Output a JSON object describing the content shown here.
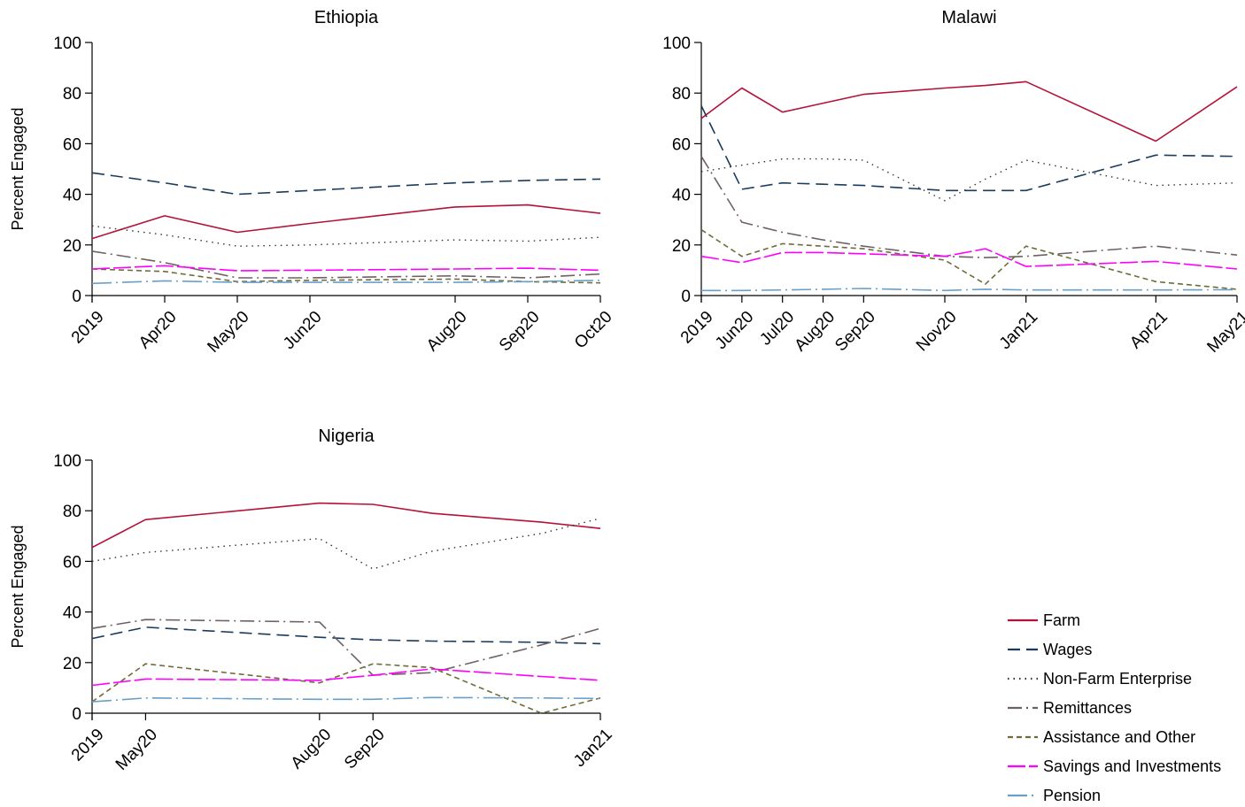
{
  "series_styles": [
    {
      "name": "Farm",
      "color": "#b5123a",
      "dash": "",
      "width": 1.6
    },
    {
      "name": "Wages",
      "color": "#1a3b5c",
      "dash": "14 7",
      "width": 1.6
    },
    {
      "name": "Non-Farm Enterprise",
      "color": "#333333",
      "dash": "1.5 5",
      "width": 1.4
    },
    {
      "name": "Remittances",
      "color": "#6e6166",
      "dash": "16 5 2 5",
      "width": 1.6
    },
    {
      "name": "Assistance and Other",
      "color": "#6f6b3a",
      "dash": "6 4",
      "width": 1.6
    },
    {
      "name": "Savings and Investments",
      "color": "#ff00ff",
      "dash": "20 4",
      "width": 1.6
    },
    {
      "name": "Pension",
      "color": "#6a9fc8",
      "dash": "22 5 2 5",
      "width": 1.6
    }
  ],
  "chart_data": [
    {
      "type": "line",
      "title": "Ethiopia",
      "ylabel": "Percent Engaged",
      "ylim": [
        0,
        100
      ],
      "yticks": [
        0,
        20,
        40,
        60,
        80,
        100
      ],
      "xlim": [
        0,
        35
      ],
      "x": [
        0,
        5,
        10,
        15,
        25,
        30,
        35
      ],
      "xtick_labels": [
        "2019",
        "Apr20",
        "May20",
        "Jun20",
        "Aug20",
        "Sep20",
        "Oct20"
      ],
      "series": [
        {
          "name": "Farm",
          "values": [
            22.5,
            31.5,
            25,
            28.5,
            35,
            35.8,
            32.5
          ]
        },
        {
          "name": "Wages",
          "values": [
            48.5,
            44.5,
            40,
            41.5,
            44.5,
            45.5,
            46
          ]
        },
        {
          "name": "Non-Farm Enterprise",
          "values": [
            27.5,
            24,
            19.5,
            20,
            22,
            21.5,
            23
          ]
        },
        {
          "name": "Remittances",
          "values": [
            17.5,
            13,
            7,
            7,
            7.8,
            7,
            8.5
          ]
        },
        {
          "name": "Assistance and Other",
          "values": [
            10.5,
            9.5,
            5.5,
            6,
            6.5,
            5.5,
            5
          ]
        },
        {
          "name": "Savings and Investments",
          "values": [
            10.5,
            11.8,
            9.8,
            10,
            10.5,
            10.8,
            10
          ]
        },
        {
          "name": "Pension",
          "values": [
            4.8,
            5.8,
            5.2,
            5.2,
            5.2,
            5.5,
            6
          ]
        }
      ]
    },
    {
      "type": "line",
      "title": "Malawi",
      "ylabel": "",
      "ylim": [
        0,
        100
      ],
      "yticks": [
        0,
        20,
        40,
        60,
        80,
        100
      ],
      "xlim": [
        0,
        66
      ],
      "x": [
        0,
        5,
        10,
        15,
        20,
        30,
        35,
        40,
        56,
        66
      ],
      "xtick_at": [
        0,
        5,
        10,
        15,
        20,
        30,
        40,
        56,
        66
      ],
      "xtick_labels": [
        "2019",
        "Jun20",
        "Jul20",
        "Aug20",
        "Sep20",
        "Nov20",
        "Jan21",
        "Apr21",
        "May21"
      ],
      "series": [
        {
          "name": "Farm",
          "values": [
            70,
            82,
            72.5,
            76,
            79.5,
            82,
            83,
            84.5,
            61,
            82.5
          ]
        },
        {
          "name": "Wages",
          "values": [
            75,
            42,
            44.5,
            44,
            43.5,
            41.5,
            41.5,
            41.5,
            55.5,
            55
          ]
        },
        {
          "name": "Non-Farm Enterprise",
          "values": [
            49,
            51.5,
            54,
            54,
            53.5,
            37.5,
            46,
            53.5,
            43.5,
            44.5
          ]
        },
        {
          "name": "Remittances",
          "values": [
            55,
            29,
            25,
            22,
            19.5,
            15.5,
            15,
            15.5,
            19.5,
            16
          ]
        },
        {
          "name": "Assistance and Other",
          "values": [
            26,
            15.5,
            20.5,
            19.5,
            18.5,
            14,
            4.5,
            19.5,
            5.5,
            2.5
          ]
        },
        {
          "name": "Savings and Investments",
          "values": [
            15.5,
            13,
            17,
            17,
            16.5,
            15.5,
            18.5,
            11.5,
            13.5,
            10.5
          ]
        },
        {
          "name": "Pension",
          "values": [
            2,
            2,
            2.2,
            2.5,
            2.8,
            2,
            2.5,
            2.2,
            2.2,
            2.3
          ]
        }
      ]
    },
    {
      "type": "line",
      "title": "Nigeria",
      "ylabel": "Percent Engaged",
      "ylim": [
        0,
        100
      ],
      "yticks": [
        0,
        20,
        40,
        60,
        80,
        100
      ],
      "xlim": [
        0,
        19
      ],
      "x": [
        0,
        2,
        8.5,
        10.5,
        12.7,
        16.8,
        19
      ],
      "xtick_at": [
        0,
        2,
        8.5,
        10.5,
        19
      ],
      "xtick_labels": [
        "2019",
        "May20",
        "Aug20",
        "Sep20",
        "Jan21"
      ],
      "series": [
        {
          "name": "Farm",
          "values": [
            65.5,
            76.5,
            83,
            82.5,
            79,
            75.5,
            73
          ]
        },
        {
          "name": "Wages",
          "values": [
            29.5,
            34,
            30,
            29,
            28.5,
            28,
            27.5
          ]
        },
        {
          "name": "Non-Farm Enterprise",
          "values": [
            60,
            63.5,
            69,
            57,
            64,
            71,
            77
          ]
        },
        {
          "name": "Remittances",
          "values": [
            33.5,
            37,
            36,
            15,
            16,
            27,
            33.5
          ]
        },
        {
          "name": "Assistance and Other",
          "values": [
            4.5,
            19.5,
            12,
            19.5,
            18,
            0,
            6
          ]
        },
        {
          "name": "Savings and Investments",
          "values": [
            11,
            13.5,
            13,
            15,
            17.5,
            14.5,
            13
          ]
        },
        {
          "name": "Pension",
          "values": [
            4.5,
            6,
            5.5,
            5.5,
            6.2,
            6,
            5.8
          ]
        }
      ]
    }
  ]
}
